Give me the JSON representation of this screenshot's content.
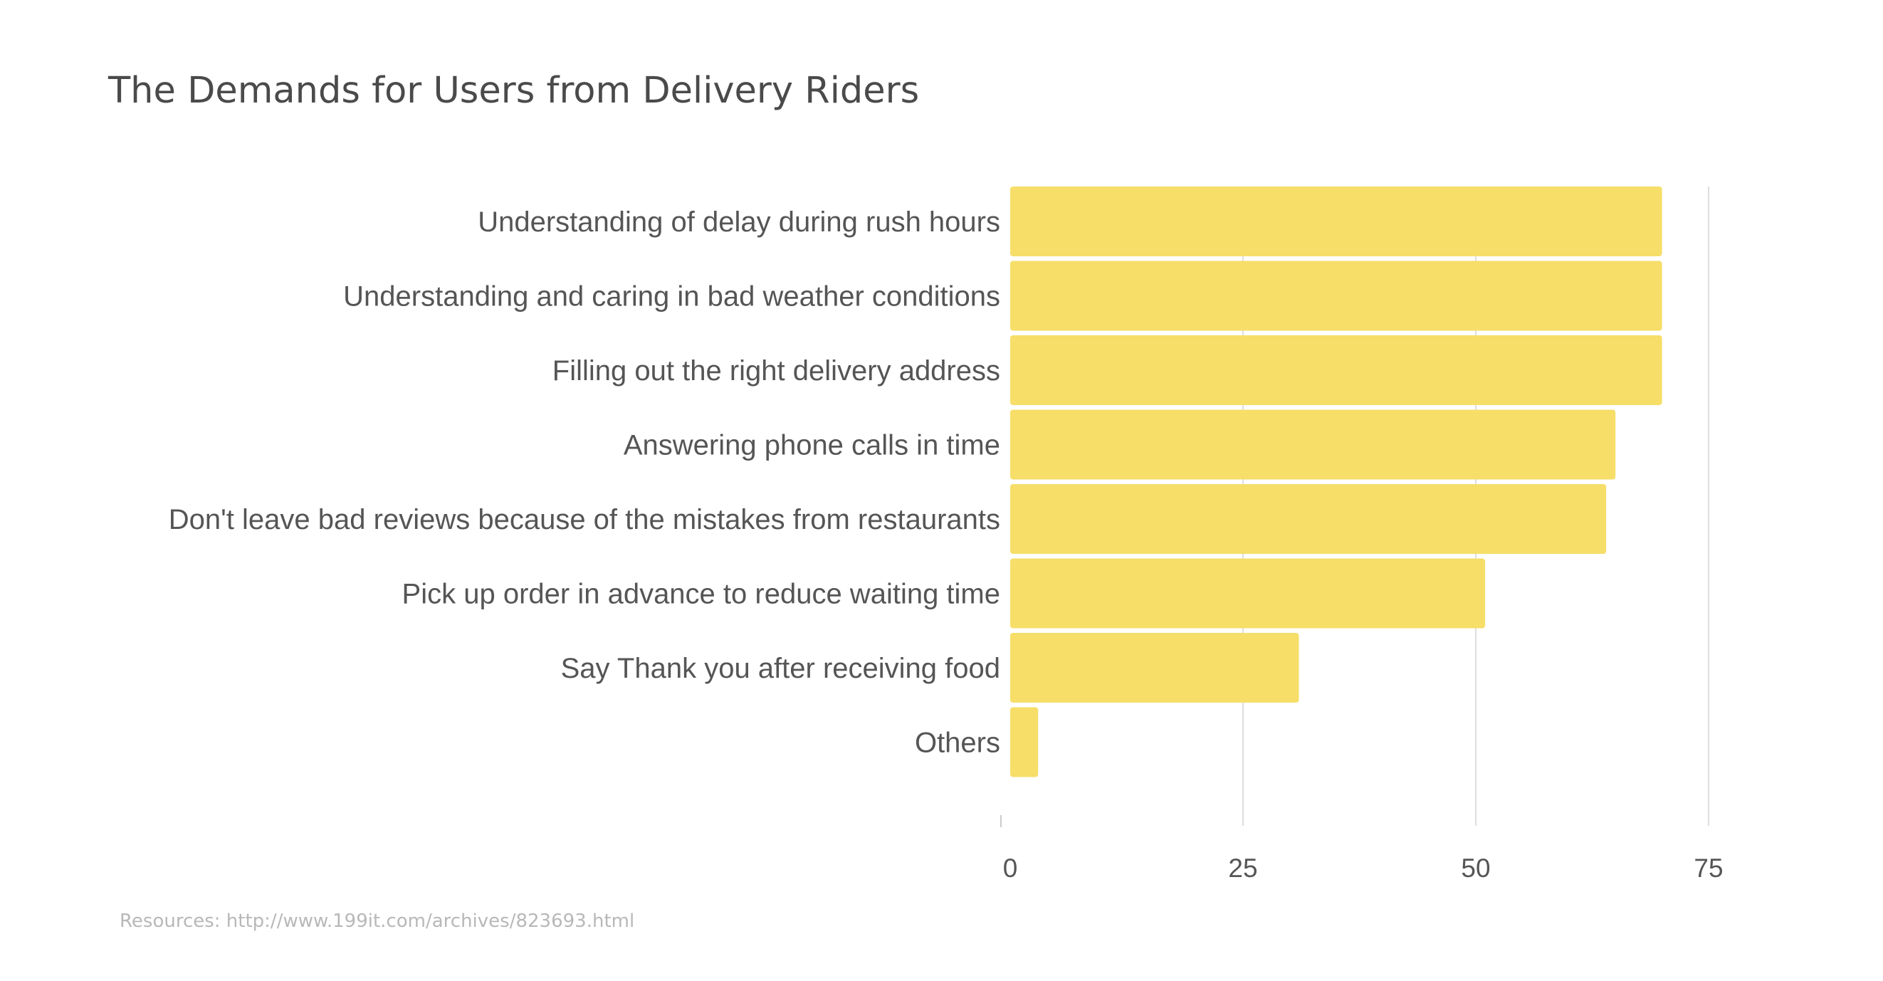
{
  "chart_data": {
    "type": "bar",
    "orientation": "horizontal",
    "title": "The Demands for Users from Delivery Riders",
    "categories": [
      "Understanding of delay during rush hours",
      "Understanding and caring in bad weather conditions",
      "Filling out the right delivery address",
      "Answering phone calls in time",
      "Don't leave bad reviews because of the mistakes from restaurants",
      "Pick up order in advance to reduce waiting time",
      "Say Thank you after receiving food",
      "Others"
    ],
    "values": [
      70,
      70,
      70,
      65,
      64,
      51,
      31,
      3
    ],
    "xlim": [
      0,
      75
    ],
    "xticks": [
      0,
      25,
      50,
      75
    ],
    "xtick_labels": [
      "0",
      "25",
      "50",
      "75"
    ],
    "grid": "vertical",
    "bar_color": "#f6de68"
  },
  "source": "Resources: http://www.199it.com/archives/823693.html"
}
